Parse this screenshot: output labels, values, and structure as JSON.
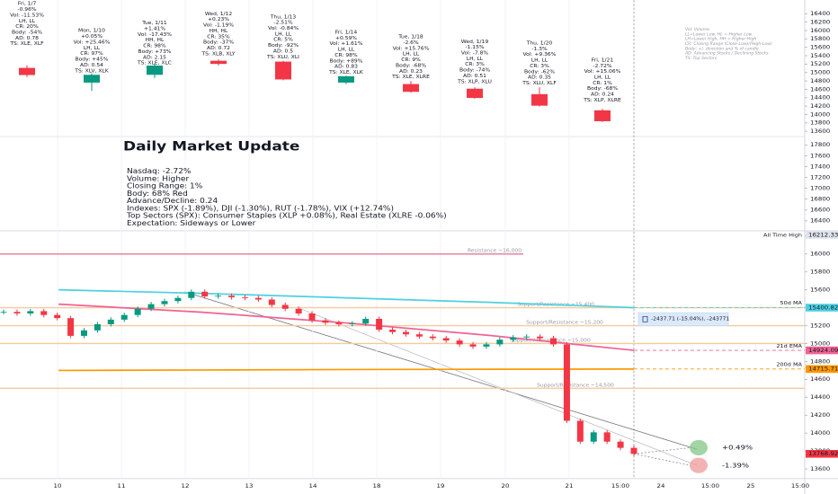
{
  "daily_panel": {
    "type": "candlestick",
    "ylim": [
      13510,
      16580
    ],
    "yticks": [
      13600,
      13800,
      14000,
      14200,
      14400,
      14600,
      14800,
      15000,
      15200,
      15400,
      15600,
      15800,
      16000,
      16200,
      16400
    ],
    "up_color": "#089981",
    "down_color": "#f23645",
    "days": [
      {
        "lines": [
          "Fri, 1/7",
          "-0.96%",
          "Vol: -11.53%",
          "LH, LL",
          "CR: 20%",
          "Body: -54%",
          "AD: 0.78",
          "TS: XLE, XLF"
        ],
        "open": 15110,
        "high": 15170,
        "low": 14890,
        "close": 14940
      },
      {
        "lines": [
          "Mon, 1/10",
          "+0.05%",
          "Vol: +25.46%",
          "LH, LL",
          "CR: 97%",
          "Body: +45%",
          "AD: 0.54",
          "TS: XLV, XLK"
        ],
        "open": 14760,
        "high": 14980,
        "low": 14560,
        "close": 14945
      },
      {
        "lines": [
          "Tue, 1/11",
          "+1.41%",
          "Vol: -17.43%",
          "HH, HL",
          "CR: 98%",
          "Body: +73%",
          "AD: 2.15",
          "TS: XLE, XLC"
        ],
        "open": 14945,
        "high": 15200,
        "low": 14870,
        "close": 15165
      },
      {
        "lines": [
          "Wed, 1/12",
          "+0.23%",
          "Vol: -1.19%",
          "HH, HL",
          "CR: 35%",
          "Body: -37%",
          "AD: 0.72",
          "TS: XLB, XLY"
        ],
        "open": 15280,
        "high": 15315,
        "low": 15165,
        "close": 15205
      },
      {
        "lines": [
          "Thu, 1/13",
          "-2.51%",
          "Vol: -0.84%",
          "LH, LL",
          "CR: 5%",
          "Body: -92%",
          "AD: 0.5",
          "TS: XLU, XLI"
        ],
        "open": 15260,
        "high": 15280,
        "low": 14815,
        "close": 14835
      },
      {
        "lines": [
          "Fri, 1/14",
          "+0.59%",
          "Vol: +1.61%",
          "LH, LL",
          "CR: 98%",
          "Body: +89%",
          "AD: 0.83",
          "TS: XLE, XLK"
        ],
        "open": 14760,
        "high": 14925,
        "low": 14725,
        "close": 14910
      },
      {
        "lines": [
          "Tue, 1/18",
          "-2.6%",
          "Vol: +15.76%",
          "LH, LL",
          "CR: 9%",
          "Body: -68%",
          "AD: 0.23",
          "TS: XLE, XLRE"
        ],
        "open": 14725,
        "high": 14800,
        "low": 14520,
        "close": 14540
      },
      {
        "lines": [
          "Wed, 1/19",
          "-1.15%",
          "Vol: -7.8%",
          "LH, LL",
          "CR: 3%",
          "Body: -74%",
          "AD: 0.51",
          "TS: XLP, XLU"
        ],
        "open": 14615,
        "high": 14650,
        "low": 14375,
        "close": 14395
      },
      {
        "lines": [
          "Thu, 1/20",
          "-1.3%",
          "Vol: +9.36%",
          "LH, LL",
          "CR: 3%",
          "Body: -62%",
          "AD: 0.35",
          "TS: XLU, XLF"
        ],
        "open": 14485,
        "high": 14650,
        "low": 14190,
        "close": 14210
      },
      {
        "lines": [
          "Fri, 1/21",
          "-2.72%",
          "Vol: +15.06%",
          "LH, LL",
          "CR: 1%",
          "Body: -68%",
          "AD: 0.24",
          "TS: XLP, XLRE"
        ],
        "open": 14100,
        "high": 14135,
        "low": 13820,
        "close": 13840
      }
    ],
    "legend": [
      "Vol: Volume",
      "LL=Lower Low, HL = Higher Low",
      "LH=Lower High, HH = Higher High",
      "CR: Closing Range (Close-Low)/(High-Low)",
      "Body: +/- direction and % of candle",
      "AD: Advancing Stocks / Declining Stocks",
      "TS: Top Sectors"
    ]
  },
  "update": {
    "title": "Daily Market Update",
    "lines": [
      "Nasdaq: -2.72%",
      "Volume: Higher",
      "Closing Range: 1%",
      "Body: 68% Red",
      "Advance/Decline: 0.24",
      "Indexes: SPX (-1.89%), DJI (-1.30%), RUT (-1.78%), VIX (+12.74%)",
      "Top Sectors (SPX): Consumer Staples (XLP +0.08%), Real Estate (XLRE -0.06%)",
      "Expectation: Sideways or Lower"
    ],
    "ylim": [
      16230,
      17940
    ],
    "yticks": [
      16400,
      16600,
      16800,
      17000,
      17200,
      17400,
      17600,
      17800
    ]
  },
  "intraday_panel": {
    "type": "candlestick",
    "ylim": [
      13450,
      16250
    ],
    "yticks": [
      13600,
      13800,
      14000,
      14200,
      14400,
      14600,
      14800,
      15000,
      15200,
      15400,
      15600,
      15800,
      16000,
      16200
    ],
    "x_labels": [
      "10",
      "11",
      "12",
      "13",
      "14",
      "18",
      "19",
      "20",
      "21",
      "15:00",
      "24",
      "15:00",
      "25",
      "15:00"
    ],
    "closes": [
      15353,
      15336,
      15362,
      15319,
      15284,
      15086,
      15147,
      15216,
      15267,
      15319,
      15388,
      15440,
      15474,
      15509,
      15578,
      15526,
      15534,
      15517,
      15509,
      15491,
      15431,
      15388,
      15336,
      15259,
      15233,
      15216,
      15224,
      15276,
      15155,
      15129,
      15103,
      15078,
      15060,
      15034,
      14991,
      14966,
      14991,
      15043,
      15069,
      15078,
      15060,
      14991,
      14138,
      13905,
      14009,
      13905,
      13836,
      13768.92
    ],
    "up_color": "#089981",
    "down_color": "#f23645",
    "levels": [
      {
        "value": 16000,
        "label": "Resistance ~16,000",
        "color": "#e991a6"
      },
      {
        "value": 15400,
        "label": "Support/Resistance ~15,400",
        "color": "#f7c99b"
      },
      {
        "value": 15200,
        "label": "Support/Resistance ~15,200",
        "color": "#f7c99b"
      },
      {
        "value": 15000,
        "label": "Support / Resistance ~15,000",
        "color": "#f7c99b"
      },
      {
        "value": 14500,
        "label": "Support/Resistance ~14,500",
        "color": "#f7c99b"
      }
    ],
    "moving_averages": [
      {
        "name": "50d MA",
        "color": "#4dd0e1",
        "values": [
          15600,
          15560,
          15510,
          15460,
          15400.82
        ]
      },
      {
        "name": "21d EMA",
        "color": "#f06292",
        "values": [
          15440,
          15350,
          15230,
          15090,
          14924.09
        ]
      },
      {
        "name": "200d MA",
        "color": "#ff9800",
        "values": [
          14700,
          14705,
          14710,
          14713,
          14715.71
        ]
      }
    ],
    "all_time_high": {
      "label": "All Time High",
      "value": 16212.33
    },
    "measure": "-2437.71 (-15.04%), -243771",
    "projections": [
      {
        "label": "+0.49%",
        "color": "#81c784"
      },
      {
        "label": "-1.39%",
        "color": "#ef9a9a"
      }
    ]
  }
}
